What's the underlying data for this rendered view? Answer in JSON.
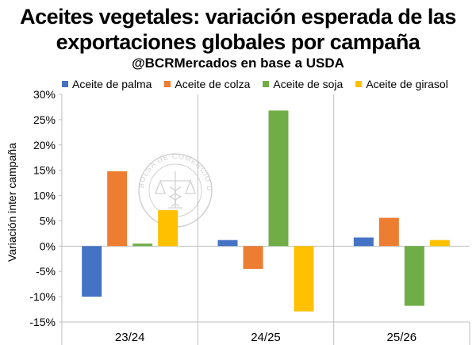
{
  "header": {
    "title_line1": "Aceites vegetales: variación esperada de las",
    "title_line2": "exportaciones globales por campaña",
    "subtitle": "@BCRMercados en base a USDA"
  },
  "watermark": {
    "text": "BOLSA DE COMERCIO DE ROSARIO",
    "icon": "scales-caduceus-seal-icon"
  },
  "chart_data": {
    "type": "bar",
    "categories": [
      "23/24",
      "24/25",
      "25/26"
    ],
    "series": [
      {
        "name": "Aceite de palma",
        "color": "#4472C4",
        "values": [
          -10.0,
          1.2,
          1.7
        ]
      },
      {
        "name": "Aceite de colza",
        "color": "#ED7D31",
        "values": [
          14.8,
          -4.5,
          5.6
        ]
      },
      {
        "name": "Aceite de soja",
        "color": "#70AD47",
        "values": [
          0.5,
          26.8,
          -11.8
        ]
      },
      {
        "name": "Aceite de girasol",
        "color": "#FFC000",
        "values": [
          7.1,
          -12.9,
          1.2
        ]
      }
    ],
    "yticks": [
      "30%",
      "25%",
      "20%",
      "15%",
      "10%",
      "5%",
      "0%",
      "-5%",
      "-10%",
      "-15%"
    ],
    "ylim": [
      -15,
      30
    ],
    "ylabel": "Variación inter campaña",
    "xlabel": "",
    "grid": false,
    "legend_position": "top"
  }
}
